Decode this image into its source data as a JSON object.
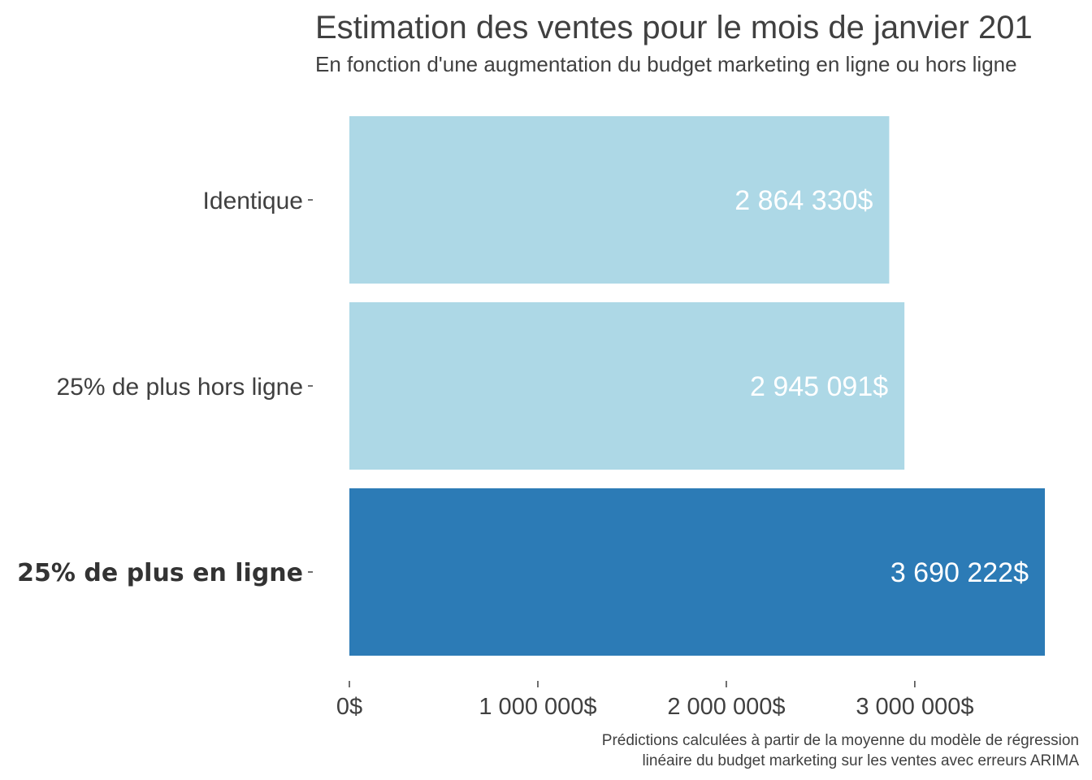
{
  "chart_data": {
    "type": "bar",
    "orientation": "horizontal",
    "title": "Estimation des ventes pour le mois de janvier 201",
    "subtitle": "En fonction d'une augmentation du budget marketing en ligne ou hors ligne",
    "categories": [
      "Identique",
      "25% de plus hors ligne",
      "25% de plus en ligne"
    ],
    "values": [
      2864330,
      2945091,
      3690222
    ],
    "value_labels": [
      "2 864 330$",
      "2 945 091$",
      "3 690 222$"
    ],
    "highlighted_category": "25% de plus en ligne",
    "colors": {
      "default": "#add8e6",
      "highlight": "#2c7bb6",
      "value_label": "#ffffff",
      "text": "#404040"
    },
    "x_ticks": [
      0,
      1000000,
      2000000,
      3000000
    ],
    "x_tick_labels": [
      "0$",
      "1 000 000$",
      "2 000 000$",
      "3 000 000$"
    ],
    "xlim": [
      0,
      3690222
    ],
    "grid": false,
    "xlabel": "",
    "ylabel": "",
    "caption_lines": [
      "Prédictions calculées à partir de la moyenne du modèle de régression",
      "linéaire du budget marketing sur les ventes avec erreurs ARIMA"
    ]
  }
}
